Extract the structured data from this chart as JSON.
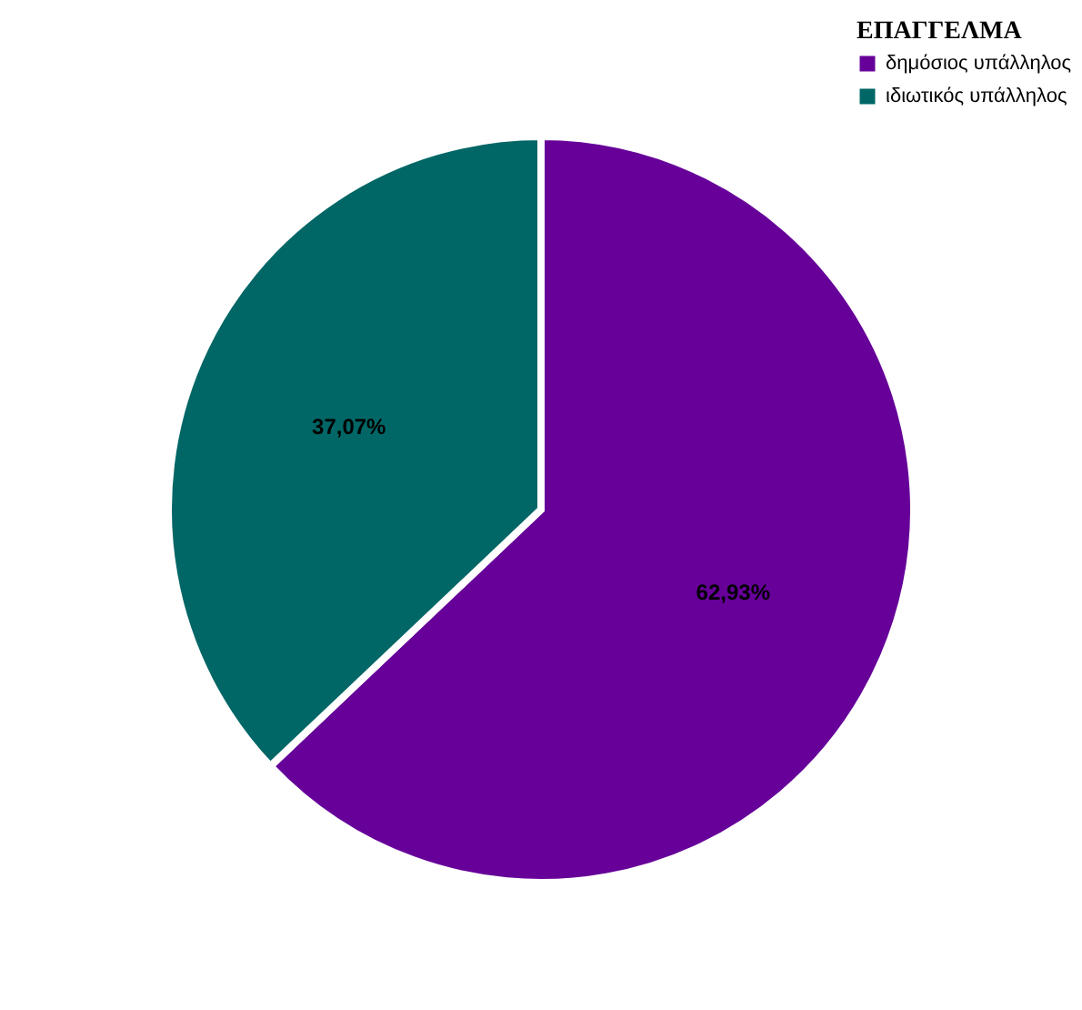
{
  "chart_data": {
    "type": "pie",
    "legend_title": "ΕΠΑΓΓΕΛΜΑ",
    "categories": [
      "δημόσιος υπάλληλος",
      "ιδιωτικός υπάλληλος"
    ],
    "values": [
      62.93,
      37.07
    ],
    "colors": [
      "#660099",
      "#006666"
    ],
    "value_labels": [
      "62,93%",
      "37,07%"
    ],
    "legend": "top right"
  }
}
